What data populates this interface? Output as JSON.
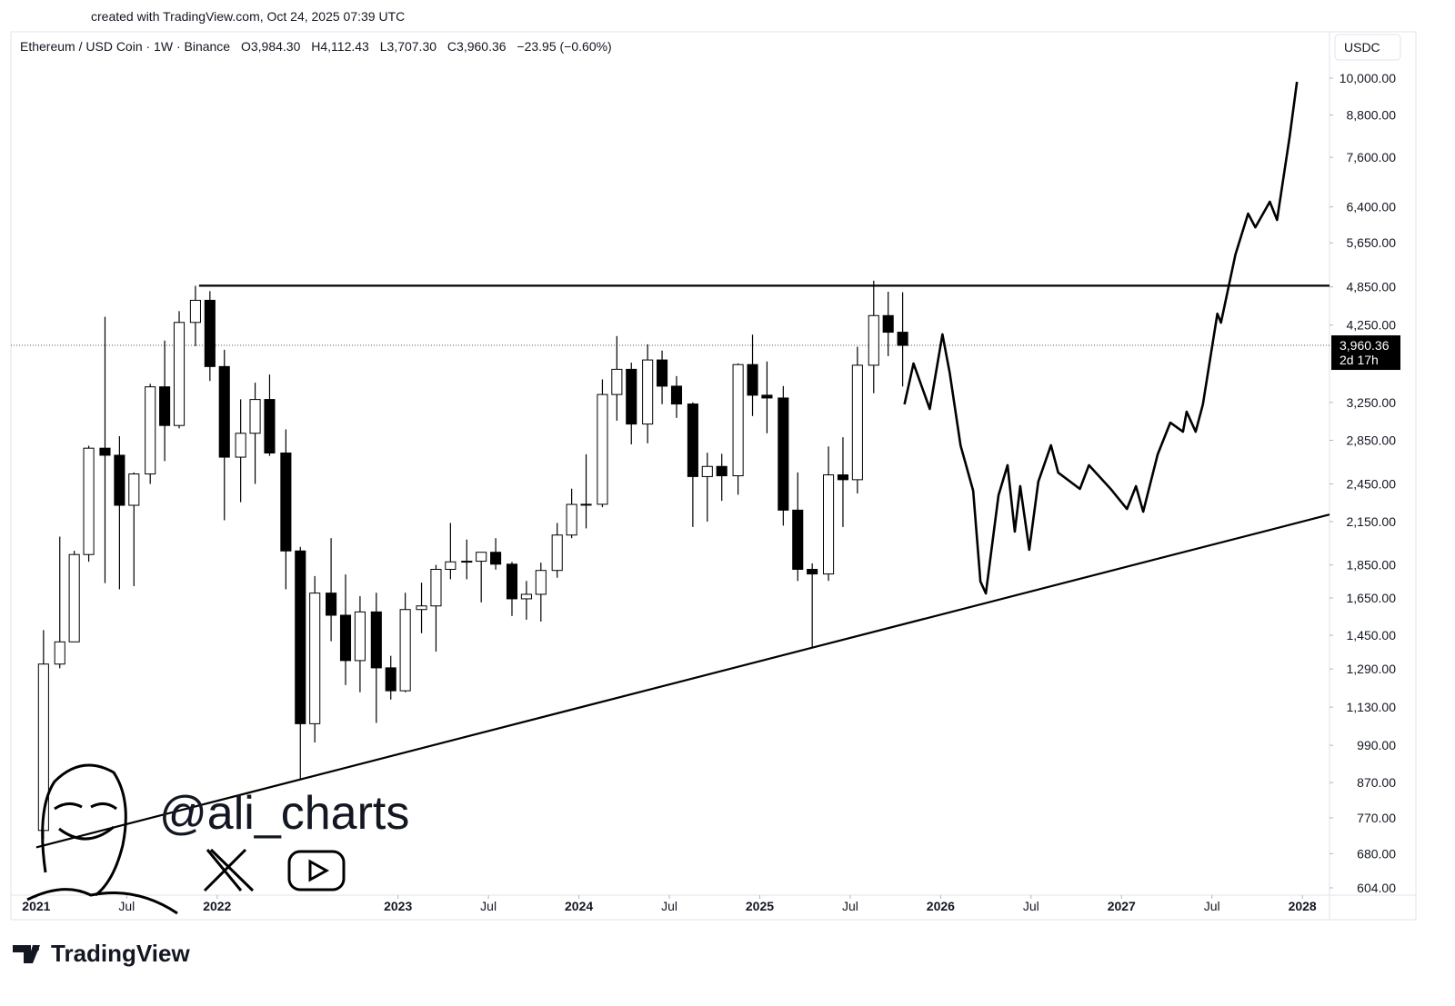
{
  "header": {
    "created": "created with TradingView.com, Oct 24, 2025 07:39 UTC",
    "symbol": "Ethereum / USD Coin · 1W · Binance",
    "ohlc": [
      "O3,984.30",
      "H4,112.43",
      "L3,707.30",
      "C3,960.36",
      "−23.95 (−0.60%)"
    ],
    "currency": "USDC"
  },
  "watermark": {
    "handle": "@ali_charts"
  },
  "footer": {
    "brand": "TradingView"
  },
  "chart_data": {
    "type": "candlestick",
    "log": true,
    "grid": false,
    "up_color": "#ffffff",
    "down_color": "#000000",
    "line_color": "#000000",
    "x": [
      2021.04,
      2021.13,
      2021.21,
      2021.29,
      2021.38,
      2021.46,
      2021.54,
      2021.63,
      2021.71,
      2021.79,
      2021.88,
      2021.96,
      2022.04,
      2022.13,
      2022.21,
      2022.29,
      2022.38,
      2022.46,
      2022.54,
      2022.63,
      2022.71,
      2022.79,
      2022.88,
      2022.96,
      2023.04,
      2023.13,
      2023.21,
      2023.29,
      2023.38,
      2023.46,
      2023.54,
      2023.63,
      2023.71,
      2023.79,
      2023.88,
      2023.96,
      2024.04,
      2024.13,
      2024.21,
      2024.29,
      2024.38,
      2024.46,
      2024.54,
      2024.63,
      2024.71,
      2024.79,
      2024.88,
      2024.96,
      2025.04,
      2025.13,
      2025.21,
      2025.29,
      2025.38,
      2025.46,
      2025.54,
      2025.63,
      2025.71,
      2025.79
    ],
    "open": [
      737,
      1312,
      1417,
      1918,
      2773,
      2706,
      2275,
      2536,
      3430,
      3000,
      4288,
      4630,
      3680,
      2688,
      2920,
      3283,
      2727,
      1942,
      1067,
      1678,
      1554,
      1328,
      1572,
      1295,
      1196,
      1585,
      1605,
      1822,
      1870,
      1874,
      1933,
      1855,
      1645,
      1671,
      1815,
      2052,
      2282,
      2283,
      3340,
      3645,
      3015,
      3765,
      3438,
      3232,
      2513,
      2603,
      2520,
      3705,
      3332,
      3300,
      2237,
      1822,
      1793,
      2528,
      2486,
      3697,
      4391,
      4145
    ],
    "high": [
      1476,
      2041,
      1943,
      2797,
      4372,
      2891,
      2550,
      3466,
      4027,
      4460,
      4868,
      4780,
      3900,
      3285,
      3480,
      3580,
      2960,
      1970,
      1780,
      2030,
      1790,
      1660,
      1680,
      1350,
      1680,
      1740,
      1850,
      2140,
      2020,
      1930,
      2030,
      1870,
      1750,
      1865,
      2140,
      2410,
      2715,
      3520,
      4090,
      3730,
      3975,
      3890,
      3560,
      3250,
      2730,
      2720,
      3720,
      4110,
      3745,
      3440,
      2550,
      1860,
      2790,
      2880,
      3940,
      4956,
      4770,
      4760
    ],
    "low": [
      715,
      1293,
      1440,
      1871,
      1737,
      1700,
      1719,
      2450,
      2652,
      2970,
      3950,
      3500,
      2160,
      2300,
      2450,
      2700,
      1700,
      880,
      1000,
      1420,
      1220,
      1190,
      1070,
      1160,
      1190,
      1460,
      1370,
      1760,
      1760,
      1625,
      1820,
      1550,
      1530,
      1520,
      1770,
      2030,
      2100,
      2260,
      3050,
      2810,
      2820,
      3230,
      3080,
      2110,
      2150,
      2310,
      2360,
      3100,
      2920,
      2120,
      1750,
      1385,
      1750,
      2110,
      2370,
      3355,
      3815,
      3435
    ],
    "close": [
      1312,
      1417,
      1918,
      2773,
      2706,
      2275,
      2536,
      3430,
      3000,
      4288,
      4630,
      3680,
      2688,
      2920,
      3283,
      2727,
      1942,
      1067,
      1678,
      1554,
      1328,
      1572,
      1295,
      1196,
      1585,
      1605,
      1822,
      1870,
      1874,
      1933,
      1855,
      1645,
      1671,
      1815,
      2052,
      2282,
      2283,
      3340,
      3645,
      3015,
      3765,
      3438,
      3232,
      2513,
      2603,
      2520,
      3705,
      3332,
      3300,
      2237,
      1822,
      1793,
      2528,
      2486,
      3697,
      4391,
      4145,
      3960.36
    ],
    "projection": {
      "x": [
        2025.8,
        2025.85,
        2025.94,
        2026.01,
        2026.05,
        2026.11,
        2026.18,
        2026.22,
        2026.25,
        2026.32,
        2026.37,
        2026.41,
        2026.44,
        2026.49,
        2026.54,
        2026.61,
        2026.65,
        2026.77,
        2026.82,
        2026.94,
        2027.03,
        2027.08,
        2027.12,
        2027.2,
        2027.27,
        2027.34,
        2027.36,
        2027.41,
        2027.45,
        2027.53,
        2027.55,
        2027.63,
        2027.7,
        2027.74,
        2027.82,
        2027.86,
        2027.93,
        2027.97
      ],
      "values": [
        3228,
        3719,
        3177,
        4114,
        3604,
        2801,
        2392,
        1747,
        1676,
        2355,
        2614,
        2077,
        2431,
        1950,
        2469,
        2801,
        2548,
        2408,
        2614,
        2408,
        2246,
        2431,
        2225,
        2714,
        3030,
        2936,
        3147,
        2936,
        3228,
        4420,
        4285,
        5427,
        6253,
        5963,
        6515,
        6116,
        8176,
        9874
      ]
    },
    "trendlines": [
      {
        "x": [
          2021.9,
          2028.15
        ],
        "y": [
          4870,
          4870
        ]
      },
      {
        "x": [
          2021.0,
          2028.15
        ],
        "y": [
          695,
          2203
        ]
      }
    ],
    "last_price": {
      "value": 3960.36,
      "label": "3,960.36"
    },
    "countdown": "2d 17h",
    "xlim": [
      2020.9,
      2028.15
    ],
    "ylim": [
      604,
      10000
    ],
    "xticks": [
      {
        "value": 2021,
        "label": "2021"
      },
      {
        "value": 2021.5,
        "label": "Jul"
      },
      {
        "value": 2022,
        "label": "2022"
      },
      {
        "value": 2023,
        "label": "2023"
      },
      {
        "value": 2023.5,
        "label": "Jul"
      },
      {
        "value": 2024,
        "label": "2024"
      },
      {
        "value": 2024.5,
        "label": "Jul"
      },
      {
        "value": 2025,
        "label": "2025"
      },
      {
        "value": 2025.5,
        "label": "Jul"
      },
      {
        "value": 2026,
        "label": "2026"
      },
      {
        "value": 2026.5,
        "label": "Jul"
      },
      {
        "value": 2027,
        "label": "2027"
      },
      {
        "value": 2027.5,
        "label": "Jul"
      },
      {
        "value": 2028,
        "label": "2028"
      }
    ],
    "yticks": [
      {
        "value": 604,
        "label": "604.00"
      },
      {
        "value": 680,
        "label": "680.00"
      },
      {
        "value": 770,
        "label": "770.00"
      },
      {
        "value": 870,
        "label": "870.00"
      },
      {
        "value": 990,
        "label": "990.00"
      },
      {
        "value": 1130,
        "label": "1,130.00"
      },
      {
        "value": 1290,
        "label": "1,290.00"
      },
      {
        "value": 1450,
        "label": "1,450.00"
      },
      {
        "value": 1650,
        "label": "1,650.00"
      },
      {
        "value": 1850,
        "label": "1,850.00"
      },
      {
        "value": 2150,
        "label": "2,150.00"
      },
      {
        "value": 2450,
        "label": "2,450.00"
      },
      {
        "value": 2850,
        "label": "2,850.00"
      },
      {
        "value": 3250,
        "label": "3,250.00"
      },
      {
        "value": 4250,
        "label": "4,250.00"
      },
      {
        "value": 4850,
        "label": "4,850.00"
      },
      {
        "value": 5650,
        "label": "5,650.00"
      },
      {
        "value": 6400,
        "label": "6,400.00"
      },
      {
        "value": 7600,
        "label": "7,600.00"
      },
      {
        "value": 8800,
        "label": "8,800.00"
      },
      {
        "value": 10000,
        "label": "10,000.00"
      }
    ]
  }
}
